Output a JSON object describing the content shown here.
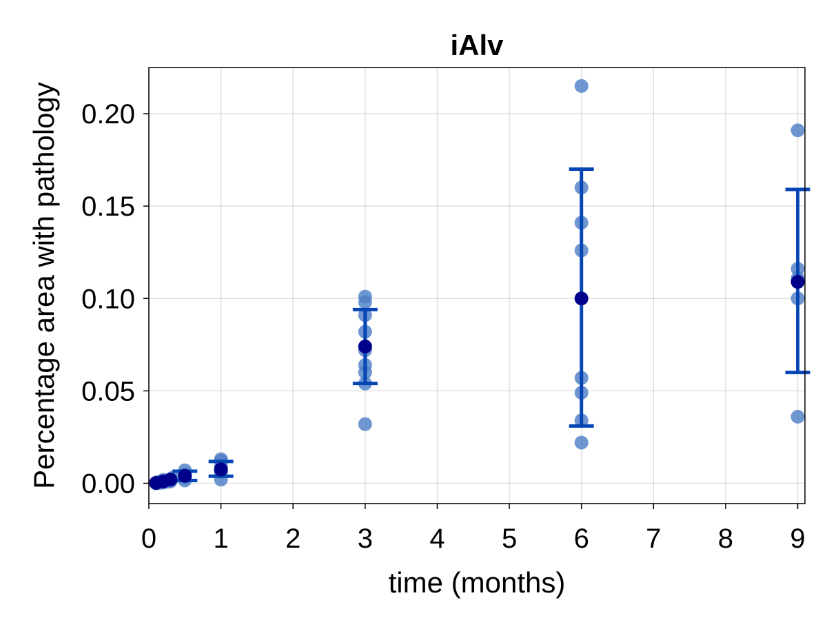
{
  "chart_data": {
    "type": "scatter",
    "title": "iAlv",
    "xlabel": "time (months)",
    "ylabel": "Percentage area with pathology",
    "xlim": [
      0,
      9.1
    ],
    "ylim": [
      -0.011,
      0.225
    ],
    "xticks": [
      0,
      1,
      2,
      3,
      4,
      5,
      6,
      7,
      8,
      9
    ],
    "xtick_labels": [
      "0",
      "1",
      "2",
      "3",
      "4",
      "5",
      "6",
      "7",
      "8",
      "9"
    ],
    "yticks": [
      0.0,
      0.05,
      0.1,
      0.15,
      0.2
    ],
    "ytick_labels": [
      "0.00",
      "0.05",
      "0.10",
      "0.15",
      "0.20"
    ],
    "grid": true,
    "colors": {
      "points": "#4e7fc6",
      "mean": "#00008b",
      "errorbar": "#0546b4"
    },
    "points": [
      {
        "x": 0.1,
        "y": 0.0
      },
      {
        "x": 0.1,
        "y": 0.0003
      },
      {
        "x": 0.12,
        "y": 0.0006
      },
      {
        "x": 0.15,
        "y": 0.0002
      },
      {
        "x": 0.2,
        "y": 0.001
      },
      {
        "x": 0.2,
        "y": 0.0004
      },
      {
        "x": 0.2,
        "y": 0.0018
      },
      {
        "x": 0.25,
        "y": 0.0008
      },
      {
        "x": 0.25,
        "y": 0.0015
      },
      {
        "x": 0.3,
        "y": 0.002
      },
      {
        "x": 0.3,
        "y": 0.001
      },
      {
        "x": 0.33,
        "y": 0.003
      },
      {
        "x": 0.5,
        "y": 0.007
      },
      {
        "x": 0.5,
        "y": 0.005
      },
      {
        "x": 0.5,
        "y": 0.003
      },
      {
        "x": 0.5,
        "y": 0.0015
      },
      {
        "x": 1,
        "y": 0.013
      },
      {
        "x": 1,
        "y": 0.012
      },
      {
        "x": 1,
        "y": 0.009
      },
      {
        "x": 1,
        "y": 0.007
      },
      {
        "x": 1,
        "y": 0.006
      },
      {
        "x": 1,
        "y": 0.002
      },
      {
        "x": 3,
        "y": 0.101
      },
      {
        "x": 3,
        "y": 0.098
      },
      {
        "x": 3,
        "y": 0.091
      },
      {
        "x": 3,
        "y": 0.082
      },
      {
        "x": 3,
        "y": 0.072
      },
      {
        "x": 3,
        "y": 0.064
      },
      {
        "x": 3,
        "y": 0.06
      },
      {
        "x": 3,
        "y": 0.054
      },
      {
        "x": 3,
        "y": 0.032
      },
      {
        "x": 6,
        "y": 0.215
      },
      {
        "x": 6,
        "y": 0.16
      },
      {
        "x": 6,
        "y": 0.141
      },
      {
        "x": 6,
        "y": 0.126
      },
      {
        "x": 6,
        "y": 0.057
      },
      {
        "x": 6,
        "y": 0.049
      },
      {
        "x": 6,
        "y": 0.034
      },
      {
        "x": 6,
        "y": 0.022
      },
      {
        "x": 9,
        "y": 0.191
      },
      {
        "x": 9,
        "y": 0.116
      },
      {
        "x": 9,
        "y": 0.111
      },
      {
        "x": 9,
        "y": 0.1
      },
      {
        "x": 9,
        "y": 0.036
      }
    ],
    "means": [
      {
        "x": 0.1,
        "y": 0.0002
      },
      {
        "x": 0.2,
        "y": 0.001
      },
      {
        "x": 0.3,
        "y": 0.002
      },
      {
        "x": 0.5,
        "y": 0.004
      },
      {
        "x": 1,
        "y": 0.0075
      },
      {
        "x": 3,
        "y": 0.074
      },
      {
        "x": 6,
        "y": 0.1
      },
      {
        "x": 9,
        "y": 0.109
      }
    ],
    "errorbars": [
      {
        "x": 0.5,
        "low": 0.0015,
        "high": 0.0065
      },
      {
        "x": 1,
        "low": 0.0038,
        "high": 0.0118
      },
      {
        "x": 3,
        "low": 0.054,
        "high": 0.094
      },
      {
        "x": 6,
        "low": 0.031,
        "high": 0.17
      },
      {
        "x": 9,
        "low": 0.06,
        "high": 0.159
      }
    ]
  }
}
